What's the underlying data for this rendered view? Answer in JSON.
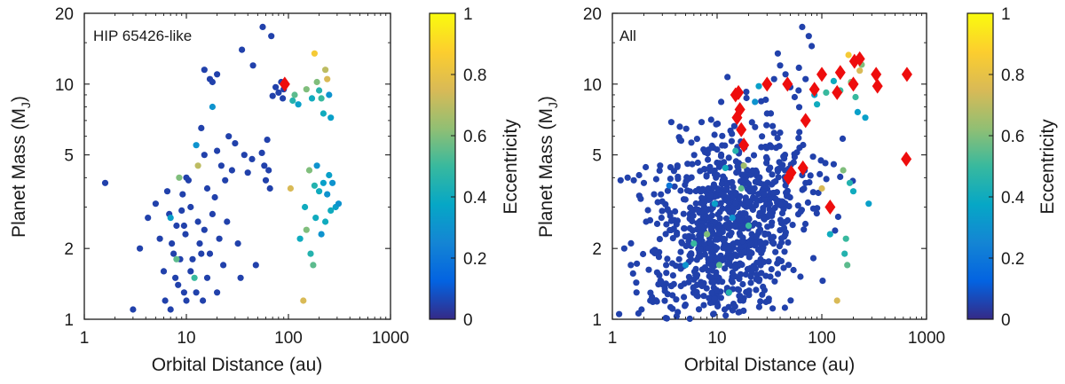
{
  "chart_data": [
    {
      "type": "scatter",
      "panel_label": "HIP 65426-like",
      "xlabel": "Orbital Distance (au)",
      "ylabel_main": "Planet Mass (M",
      "ylabel_sub": "J",
      "ylabel_close": ")",
      "xscale": "log",
      "yscale": "log",
      "xlim": [
        1,
        1000
      ],
      "ylim": [
        1,
        20
      ],
      "xticks": [
        1,
        10,
        100,
        1000
      ],
      "xtick_labels": [
        "1",
        "10",
        "100",
        "1000"
      ],
      "yticks": [
        1,
        2,
        5,
        10,
        20
      ],
      "ytick_labels": [
        "1",
        "2",
        "5",
        "10",
        "20"
      ],
      "colorbar": {
        "label": "Eccentricity",
        "range": [
          0,
          1
        ],
        "ticks": [
          0,
          0.2,
          0.4,
          0.6,
          0.8,
          1
        ],
        "tick_labels": [
          "0",
          "0.2",
          "0.4",
          "0.6",
          "0.8",
          "1"
        ]
      },
      "points": [
        [
          1.6,
          3.8,
          0.05
        ],
        [
          3,
          1.1,
          0.05
        ],
        [
          4.2,
          2.7,
          0.05
        ],
        [
          5,
          3.1,
          0.05
        ],
        [
          5.5,
          2.2,
          0.05
        ],
        [
          6,
          1.6,
          0.05
        ],
        [
          6.5,
          3.5,
          0.05
        ],
        [
          6.8,
          2.8,
          0.05
        ],
        [
          7,
          1.1,
          0.05
        ],
        [
          7.2,
          2.1,
          0.05
        ],
        [
          7.5,
          1.9,
          0.05
        ],
        [
          7.8,
          1.5,
          0.05
        ],
        [
          8,
          2.5,
          0.05
        ],
        [
          8.3,
          1.4,
          0.05
        ],
        [
          8.5,
          4,
          0.6
        ],
        [
          8.7,
          1.8,
          0.05
        ],
        [
          9,
          2.9,
          0.05
        ],
        [
          9.2,
          3.4,
          0.05
        ],
        [
          9.5,
          1.3,
          0.05
        ],
        [
          9.8,
          2.3,
          0.05
        ],
        [
          10,
          1.2,
          0.05
        ],
        [
          10.5,
          3.9,
          0.05
        ],
        [
          11,
          1.6,
          0.05
        ],
        [
          11.5,
          1.8,
          0.05
        ],
        [
          12,
          1.5,
          0.5
        ],
        [
          12.5,
          5.5,
          0.3
        ],
        [
          12.5,
          1.3,
          0.05
        ],
        [
          13,
          4.5,
          0.7
        ],
        [
          13,
          2.6,
          0.05
        ],
        [
          13.5,
          2.1,
          0.05
        ],
        [
          14,
          6.5,
          0.05
        ],
        [
          14,
          1.9,
          0.05
        ],
        [
          14.5,
          1.2,
          0.05
        ],
        [
          15,
          5,
          0.05
        ],
        [
          15,
          2.4,
          0.05
        ],
        [
          16,
          3.6,
          0.05
        ],
        [
          16,
          1.5,
          0.05
        ],
        [
          17,
          1.9,
          0.05
        ],
        [
          17,
          10.5,
          0.05
        ],
        [
          18,
          8,
          0.3
        ],
        [
          18,
          2.8,
          0.05
        ],
        [
          19,
          3.3,
          0.05
        ],
        [
          20,
          5.2,
          0.05
        ],
        [
          20,
          1.3,
          0.05
        ],
        [
          21,
          2.2,
          0.05
        ],
        [
          22,
          4.5,
          0.05
        ],
        [
          23,
          1.7,
          0.05
        ],
        [
          24,
          3.9,
          0.05
        ],
        [
          25,
          2.6,
          0.05
        ],
        [
          26,
          6,
          0.05
        ],
        [
          28,
          4.3,
          0.05
        ],
        [
          30,
          5.6,
          0.05
        ],
        [
          32,
          2.1,
          0.05
        ],
        [
          34,
          1.5,
          0.05
        ],
        [
          37,
          5,
          0.05
        ],
        [
          40,
          4.2,
          0.05
        ],
        [
          44,
          4.8,
          0.05
        ],
        [
          48,
          1.7,
          0.05
        ],
        [
          55,
          5.1,
          0.05
        ],
        [
          58,
          4.5,
          0.05
        ],
        [
          60,
          3.9,
          0.05
        ],
        [
          62,
          5.8,
          0.05
        ],
        [
          64,
          4.3,
          0.05
        ],
        [
          66,
          3.6,
          0.05
        ],
        [
          70,
          8.9,
          0.05
        ],
        [
          75,
          9.7,
          0.05
        ],
        [
          80,
          9.2,
          0.05
        ],
        [
          85,
          10.2,
          0.05
        ],
        [
          88,
          8.7,
          0.05
        ],
        [
          90,
          9.5,
          0.05
        ],
        [
          56,
          17.5,
          0.05
        ],
        [
          68,
          16,
          0.05
        ],
        [
          35,
          14,
          0.05
        ],
        [
          45,
          12,
          0.05
        ],
        [
          15,
          11.5,
          0.05
        ],
        [
          18,
          10.2,
          0.05
        ],
        [
          20,
          11,
          0.05
        ],
        [
          10,
          4,
          0.05
        ],
        [
          11,
          3,
          0.05
        ],
        [
          7,
          2.7,
          0.35
        ],
        [
          8,
          1.8,
          0.55
        ],
        [
          9.5,
          2.5,
          0.05
        ],
        [
          3.5,
          2,
          0.05
        ],
        [
          6.2,
          1.2,
          0.05
        ],
        [
          105,
          3.6,
          0.75
        ],
        [
          130,
          2.2,
          0.4
        ],
        [
          140,
          1.2,
          0.75
        ],
        [
          145,
          3,
          0.4
        ],
        [
          150,
          2.4,
          0.6
        ],
        [
          160,
          4.3,
          0.6
        ],
        [
          165,
          1.9,
          0.45
        ],
        [
          175,
          1.7,
          0.55
        ],
        [
          180,
          3.7,
          0.45
        ],
        [
          185,
          2.7,
          0.4
        ],
        [
          190,
          4.5,
          0.3
        ],
        [
          200,
          3.5,
          0.4
        ],
        [
          210,
          2.3,
          0.3
        ],
        [
          220,
          3.8,
          0.35
        ],
        [
          230,
          2.6,
          0.4
        ],
        [
          240,
          3.4,
          0.3
        ],
        [
          250,
          4.1,
          0.35
        ],
        [
          260,
          2.9,
          0.4
        ],
        [
          270,
          3.8,
          0.3
        ],
        [
          290,
          3,
          0.35
        ],
        [
          310,
          3.1,
          0.3
        ],
        [
          110,
          8.5,
          0.45
        ],
        [
          115,
          9,
          0.55
        ],
        [
          125,
          8.2,
          0.35
        ],
        [
          150,
          9.5,
          0.6
        ],
        [
          170,
          8.7,
          0.4
        ],
        [
          180,
          13.5,
          0.85
        ],
        [
          190,
          10.2,
          0.6
        ],
        [
          200,
          9.4,
          0.45
        ],
        [
          210,
          8.7,
          0.5
        ],
        [
          220,
          7.5,
          0.4
        ],
        [
          230,
          11.5,
          0.7
        ],
        [
          240,
          10.5,
          0.75
        ],
        [
          250,
          9,
          0.3
        ],
        [
          260,
          7.2,
          0.35
        ]
      ],
      "markers": [
        {
          "name": "HIP 65426 b",
          "x": 92,
          "y": 10
        }
      ]
    },
    {
      "type": "scatter",
      "panel_label": "All",
      "xlabel": "Orbital Distance (au)",
      "ylabel_main": "Planet Mass (M",
      "ylabel_sub": "J",
      "ylabel_close": ")",
      "xscale": "log",
      "yscale": "log",
      "xlim": [
        1,
        1000
      ],
      "ylim": [
        1,
        20
      ],
      "xticks": [
        1,
        10,
        100,
        1000
      ],
      "xtick_labels": [
        "1",
        "10",
        "100",
        "1000"
      ],
      "yticks": [
        1,
        2,
        5,
        10,
        20
      ],
      "ytick_labels": [
        "1",
        "2",
        "5",
        "10",
        "20"
      ],
      "colorbar": {
        "label": "Eccentricity",
        "range": [
          0,
          1
        ],
        "ticks": [
          0,
          0.2,
          0.4,
          0.6,
          0.8,
          1
        ],
        "tick_labels": [
          "0",
          "0.2",
          "0.4",
          "0.6",
          "0.8",
          "1"
        ]
      },
      "dense_cloud": {
        "n": 900,
        "x_center_au": 12,
        "x_spread_dex": 0.38,
        "y_center_mj": 2.4,
        "y_spread_dex": 0.22,
        "eccentricity": 0.05
      },
      "points": [
        [
          1.2,
          3.9,
          0.05
        ],
        [
          1.4,
          4,
          0.05
        ],
        [
          1.6,
          3.9,
          0.05
        ],
        [
          1.8,
          4.1,
          0.05
        ],
        [
          2,
          3.8,
          0.05
        ],
        [
          1.3,
          2,
          0.05
        ],
        [
          1.5,
          1.7,
          0.05
        ],
        [
          1.7,
          1.3,
          0.05
        ],
        [
          1.9,
          1.1,
          0.05
        ],
        [
          2.3,
          1.2,
          0.05
        ],
        [
          2.1,
          2.6,
          0.05
        ],
        [
          2.5,
          3.4,
          0.05
        ],
        [
          3.5,
          3.7,
          0.2
        ],
        [
          5,
          1.7,
          0.3
        ],
        [
          6,
          2.1,
          0.5
        ],
        [
          8,
          2.3,
          0.6
        ],
        [
          9.5,
          3.1,
          0.35
        ],
        [
          10.5,
          1.7,
          0.55
        ],
        [
          12,
          4.4,
          0.4
        ],
        [
          13,
          1.3,
          0.45
        ],
        [
          14,
          2.7,
          0.3
        ],
        [
          15,
          5.2,
          0.45
        ],
        [
          17,
          3.6,
          0.55
        ],
        [
          18,
          4.5,
          0.65
        ],
        [
          20,
          2.5,
          0.5
        ],
        [
          23,
          8.4,
          0.3
        ],
        [
          25,
          9.8,
          0.35
        ],
        [
          28,
          3.4,
          0.05
        ],
        [
          30,
          7.5,
          0.05
        ],
        [
          35,
          10.5,
          0.05
        ],
        [
          38,
          13.5,
          0.05
        ],
        [
          40,
          12,
          0.05
        ],
        [
          45,
          11,
          0.05
        ],
        [
          50,
          9.7,
          0.05
        ],
        [
          55,
          8.8,
          0.05
        ],
        [
          60,
          9.4,
          0.05
        ],
        [
          65,
          17.5,
          0.05
        ],
        [
          70,
          10.5,
          0.05
        ],
        [
          75,
          16,
          0.05
        ],
        [
          80,
          14.5,
          0.05
        ],
        [
          85,
          9,
          0.35
        ],
        [
          90,
          8.2,
          0.4
        ],
        [
          100,
          3.6,
          0.75
        ],
        [
          110,
          9.2,
          0.5
        ],
        [
          120,
          2.3,
          0.4
        ],
        [
          130,
          10.3,
          0.4
        ],
        [
          140,
          1.2,
          0.75
        ],
        [
          150,
          9.4,
          0.5
        ],
        [
          160,
          4.3,
          0.6
        ],
        [
          165,
          1.9,
          0.45
        ],
        [
          170,
          2.2,
          0.5
        ],
        [
          175,
          1.7,
          0.55
        ],
        [
          180,
          13.3,
          0.85
        ],
        [
          185,
          3.8,
          0.45
        ],
        [
          190,
          10.2,
          0.6
        ],
        [
          200,
          3.5,
          0.4
        ],
        [
          210,
          8.8,
          0.5
        ],
        [
          220,
          7.6,
          0.35
        ],
        [
          230,
          11.4,
          0.75
        ],
        [
          240,
          12.1,
          0.6
        ],
        [
          260,
          7.2,
          0.35
        ],
        [
          280,
          3.1,
          0.35
        ],
        [
          60,
          5.9,
          0.05
        ],
        [
          55,
          4.9,
          0.05
        ],
        [
          50,
          4.1,
          0.3
        ],
        [
          45,
          3.9,
          0.05
        ],
        [
          40,
          4.4,
          0.05
        ],
        [
          35,
          6.2,
          0.05
        ],
        [
          33,
          5.4,
          0.05
        ],
        [
          30,
          4.8,
          0.05
        ],
        [
          65,
          4.1,
          0.05
        ],
        [
          70,
          3.8,
          0.05
        ]
      ],
      "markers": [
        {
          "x": 15,
          "y": 9
        },
        {
          "x": 16,
          "y": 9.2
        },
        {
          "x": 15.5,
          "y": 7.2
        },
        {
          "x": 16.5,
          "y": 7.8
        },
        {
          "x": 17,
          "y": 6.4
        },
        {
          "x": 18,
          "y": 5.5
        },
        {
          "x": 30,
          "y": 10
        },
        {
          "x": 47,
          "y": 10
        },
        {
          "x": 48,
          "y": 4
        },
        {
          "x": 51,
          "y": 4.2
        },
        {
          "x": 66,
          "y": 4.4
        },
        {
          "x": 70,
          "y": 7
        },
        {
          "x": 85,
          "y": 9.5
        },
        {
          "x": 100,
          "y": 11
        },
        {
          "x": 120,
          "y": 3
        },
        {
          "x": 140,
          "y": 9.2
        },
        {
          "x": 150,
          "y": 11.2
        },
        {
          "x": 205,
          "y": 12.5
        },
        {
          "x": 230,
          "y": 12.8
        },
        {
          "x": 330,
          "y": 11
        },
        {
          "x": 340,
          "y": 9.8
        },
        {
          "x": 650,
          "y": 11
        },
        {
          "x": 640,
          "y": 4.8
        },
        {
          "x": 200,
          "y": 10
        }
      ]
    }
  ]
}
